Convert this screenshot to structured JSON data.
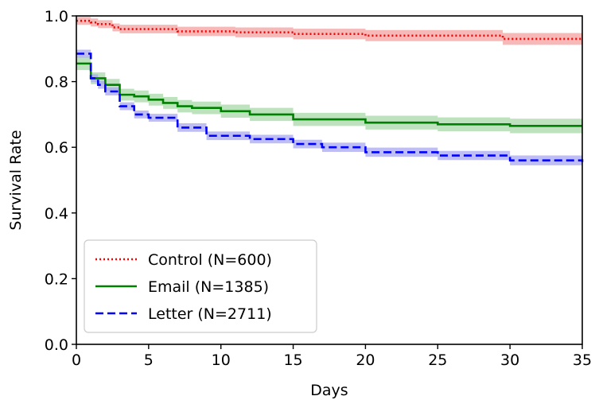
{
  "chart_data": {
    "type": "line",
    "title": "",
    "xlabel": "Days",
    "ylabel": "Survival Rate",
    "xlim": [
      0,
      35
    ],
    "ylim": [
      0.0,
      1.0
    ],
    "xticks": [
      0,
      5,
      10,
      15,
      20,
      25,
      30,
      35
    ],
    "xtick_labels": [
      "0",
      "5",
      "10",
      "15",
      "20",
      "25",
      "30",
      "35"
    ],
    "yticks": [
      0.0,
      0.2,
      0.4,
      0.6,
      0.8,
      1.0
    ],
    "ytick_labels": [
      "0.0",
      "0.2",
      "0.4",
      "0.6",
      "0.8",
      "1.0"
    ],
    "grid": false,
    "legend_position": "lower-left",
    "series": [
      {
        "name": "Control (N=600)",
        "color": "#ff0000",
        "band_color": "#f4a0a0",
        "line_style": "dotted",
        "x": [
          0,
          1,
          1.5,
          2.5,
          3,
          7,
          11,
          15,
          20,
          25,
          29.5,
          35
        ],
        "y": [
          0.985,
          0.98,
          0.975,
          0.965,
          0.96,
          0.953,
          0.95,
          0.945,
          0.94,
          0.94,
          0.93,
          0.93
        ],
        "ci_half": [
          0.012,
          0.012,
          0.012,
          0.012,
          0.013,
          0.014,
          0.015,
          0.016,
          0.017,
          0.017,
          0.018,
          0.018
        ]
      },
      {
        "name": "Email (N=1385)",
        "color": "#008000",
        "band_color": "#a8d8a8",
        "line_style": "solid",
        "x": [
          0,
          1,
          2,
          3,
          4,
          5,
          6,
          7,
          8,
          10,
          12,
          15,
          20,
          25,
          30,
          35
        ],
        "y": [
          0.855,
          0.81,
          0.79,
          0.76,
          0.755,
          0.745,
          0.735,
          0.725,
          0.72,
          0.71,
          0.7,
          0.685,
          0.675,
          0.67,
          0.665,
          0.665
        ],
        "ci_half": [
          0.02,
          0.018,
          0.018,
          0.018,
          0.018,
          0.018,
          0.018,
          0.019,
          0.019,
          0.02,
          0.02,
          0.02,
          0.021,
          0.021,
          0.022,
          0.022
        ]
      },
      {
        "name": "Letter (N=2711)",
        "color": "#0000ff",
        "band_color": "#a8a8f0",
        "line_style": "dashed",
        "x": [
          0,
          1,
          1.5,
          2,
          3,
          4,
          5,
          7,
          9,
          12,
          15,
          17,
          20,
          25,
          30,
          35
        ],
        "y": [
          0.885,
          0.81,
          0.79,
          0.77,
          0.725,
          0.7,
          0.69,
          0.66,
          0.635,
          0.625,
          0.61,
          0.6,
          0.585,
          0.575,
          0.56,
          0.555
        ],
        "ci_half": [
          0.012,
          0.012,
          0.012,
          0.012,
          0.012,
          0.012,
          0.012,
          0.013,
          0.013,
          0.013,
          0.013,
          0.014,
          0.014,
          0.014,
          0.015,
          0.015
        ]
      }
    ]
  }
}
